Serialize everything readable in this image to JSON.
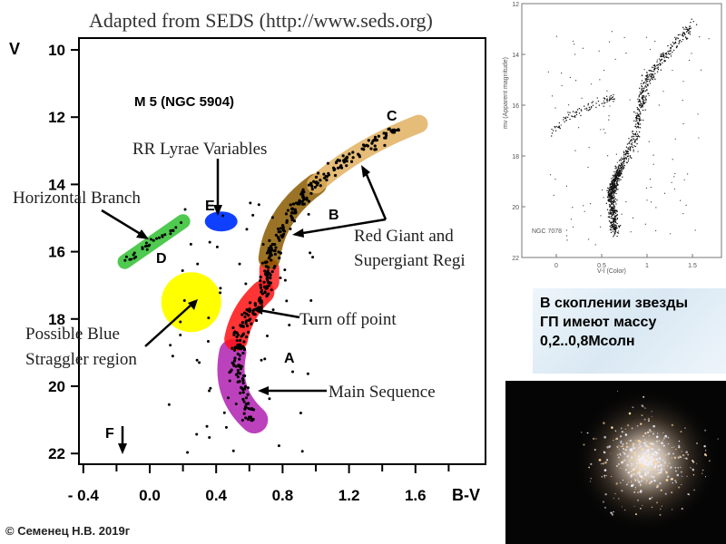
{
  "slide": {
    "note_text": "В скоплении звезды\nГП имеют массу\n0,2..0,8Мсолн",
    "credit": "© Семенец Н.В. 2019г"
  },
  "chart_data": [
    {
      "type": "scatter",
      "title": "Adapted from SEDS (http://www.seds.org)",
      "subtitle": "M 5 (NGC 5904)",
      "xlabel": "B-V",
      "ylabel": "V",
      "xlim": [
        -0.45,
        1.95
      ],
      "ylim": [
        22.3,
        9.6
      ],
      "x_ticks": [
        "- 0.4",
        "0.0",
        "0.4",
        "0.8",
        "1.2",
        "1.6"
      ],
      "x_tick_values": [
        -0.4,
        0.0,
        0.4,
        0.8,
        1.2,
        1.6
      ],
      "y_ticks": [
        "10",
        "12",
        "14",
        "16",
        "18",
        "20",
        "22"
      ],
      "y_tick_values": [
        10,
        12,
        14,
        16,
        18,
        20,
        22
      ],
      "ridge_line": [
        {
          "bv": 0.62,
          "v": 21.0
        },
        {
          "bv": 0.52,
          "v": 19.5
        },
        {
          "bv": 0.55,
          "v": 18.3
        },
        {
          "bv": 0.68,
          "v": 17.3
        },
        {
          "bv": 0.72,
          "v": 16.3
        },
        {
          "bv": 0.8,
          "v": 15.2
        },
        {
          "bv": 0.95,
          "v": 14.2
        },
        {
          "bv": 1.2,
          "v": 13.2
        },
        {
          "bv": 1.5,
          "v": 12.3
        }
      ],
      "regions": [
        {
          "letter": "A",
          "name": "Main Sequence",
          "color": "#b020b0",
          "bv": 0.65,
          "v": 19.6
        },
        {
          "letter": "",
          "name": "Turn off point",
          "color": "#ff1010",
          "bv": 0.6,
          "v": 17.8
        },
        {
          "letter": "B",
          "name": "Red Giant and Supergiant Region",
          "color": "#8a5a00",
          "bv": 0.9,
          "v": 15.0
        },
        {
          "letter": "C",
          "name": "",
          "color": "#e0b060",
          "bv": 1.35,
          "v": 13.0
        },
        {
          "letter": "D",
          "name": "Horizontal Branch",
          "color": "#30c030",
          "bv": 0.0,
          "v": 15.9
        },
        {
          "letter": "E",
          "name": "RR Lyrae Variables",
          "color": "#1040ff",
          "bv": 0.43,
          "v": 15.1
        },
        {
          "letter": "F",
          "name": "",
          "color": "#000000",
          "bv": -0.17,
          "v": 21.4
        },
        {
          "letter": "",
          "name": "Possible Blue Straggler region",
          "color": "#ffff00",
          "bv": 0.25,
          "v": 17.6
        }
      ],
      "labels": {
        "title": "Adapted from SEDS (http://www.seds.org)",
        "cluster": "M 5 (NGC 5904)",
        "rr_lyrae": "RR Lyrae Variables",
        "horizontal_branch": "Horizontal Branch",
        "red_giant_1": "Red Giant and",
        "red_giant_2": "Supergiant Regi",
        "turn_off": "Turn off point",
        "blue_straggler_1": "Possible Blue",
        "blue_straggler_2": "Straggler region",
        "main_sequence": "Main Sequence",
        "A": "A",
        "B": "B",
        "C": "C",
        "D": "D",
        "E": "E",
        "F": "F"
      }
    },
    {
      "type": "scatter",
      "title": "NGC 7078",
      "xlabel": "V-I (Color)",
      "ylabel": "mv (Apparent magnitude)",
      "xlim": [
        -0.4,
        1.8
      ],
      "ylim": [
        22,
        12
      ],
      "x_ticks": [
        "0",
        "0.5",
        "1",
        "1.5"
      ],
      "x_tick_values": [
        0,
        0.5,
        1,
        1.5
      ],
      "y_ticks": [
        "12",
        "14",
        "16",
        "18",
        "20",
        "22"
      ],
      "y_tick_values": [
        12,
        14,
        16,
        18,
        20,
        22
      ]
    }
  ]
}
